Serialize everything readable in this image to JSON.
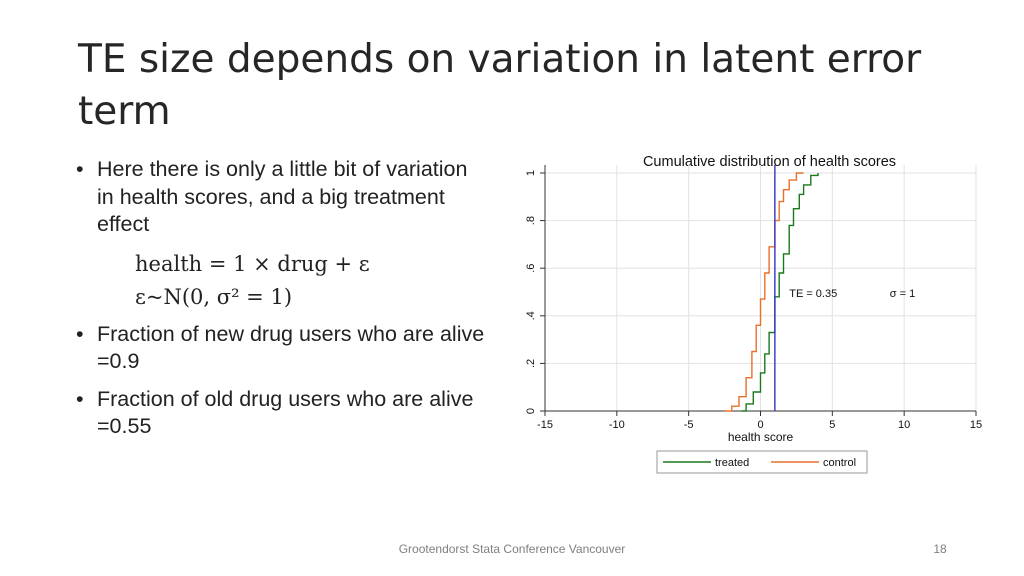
{
  "slide": {
    "title": "TE size depends on variation in latent error term",
    "bullets": [
      "Here there is only a little bit of variation in health scores, and a big treatment effect",
      "Fraction of new drug users who are alive =0.9",
      "Fraction of old drug users who are alive =0.55"
    ],
    "bullet_glyph": "•",
    "equations": [
      "health = 1 × drug + ε",
      "ε~N(0, σ² = 1)"
    ],
    "footer": "Grootendorst Stata Conference Vancouver",
    "page_number": "18"
  },
  "chart_data": {
    "type": "line",
    "title": "Cumulative distribution of health scores",
    "xlabel": "health score",
    "ylabel": "",
    "xlim": [
      -15,
      15
    ],
    "ylim": [
      0,
      1
    ],
    "xticks": [
      -15,
      -10,
      -5,
      0,
      5,
      10,
      15
    ],
    "yticks": [
      0,
      0.2,
      0.4,
      0.6,
      0.8,
      1
    ],
    "ytick_labels": [
      "0",
      ".2",
      ".4",
      ".6",
      ".8",
      "1"
    ],
    "grid": true,
    "legend_position": "bottom",
    "vline": {
      "x": 1,
      "color": "#3333cc"
    },
    "annotations": [
      "TE = 0.35",
      "σ = 1"
    ],
    "series": [
      {
        "name": "treated",
        "color": "#1a7a1a",
        "x": [
          -1.3,
          -1.0,
          -0.5,
          0.0,
          0.3,
          0.6,
          1.0,
          1.3,
          1.6,
          2.0,
          2.3,
          2.7,
          3.0,
          3.5,
          4.0
        ],
        "y": [
          0.0,
          0.03,
          0.08,
          0.16,
          0.24,
          0.33,
          0.48,
          0.58,
          0.66,
          0.78,
          0.85,
          0.91,
          0.95,
          0.99,
          1.0
        ]
      },
      {
        "name": "control",
        "color": "#e8702a",
        "x": [
          -2.5,
          -2.0,
          -1.5,
          -1.0,
          -0.6,
          -0.3,
          0.0,
          0.3,
          0.6,
          1.0,
          1.3,
          1.6,
          2.0,
          2.5,
          3.0
        ],
        "y": [
          0.0,
          0.02,
          0.06,
          0.14,
          0.25,
          0.36,
          0.47,
          0.58,
          0.69,
          0.8,
          0.88,
          0.93,
          0.97,
          1.0,
          1.0
        ]
      }
    ]
  }
}
